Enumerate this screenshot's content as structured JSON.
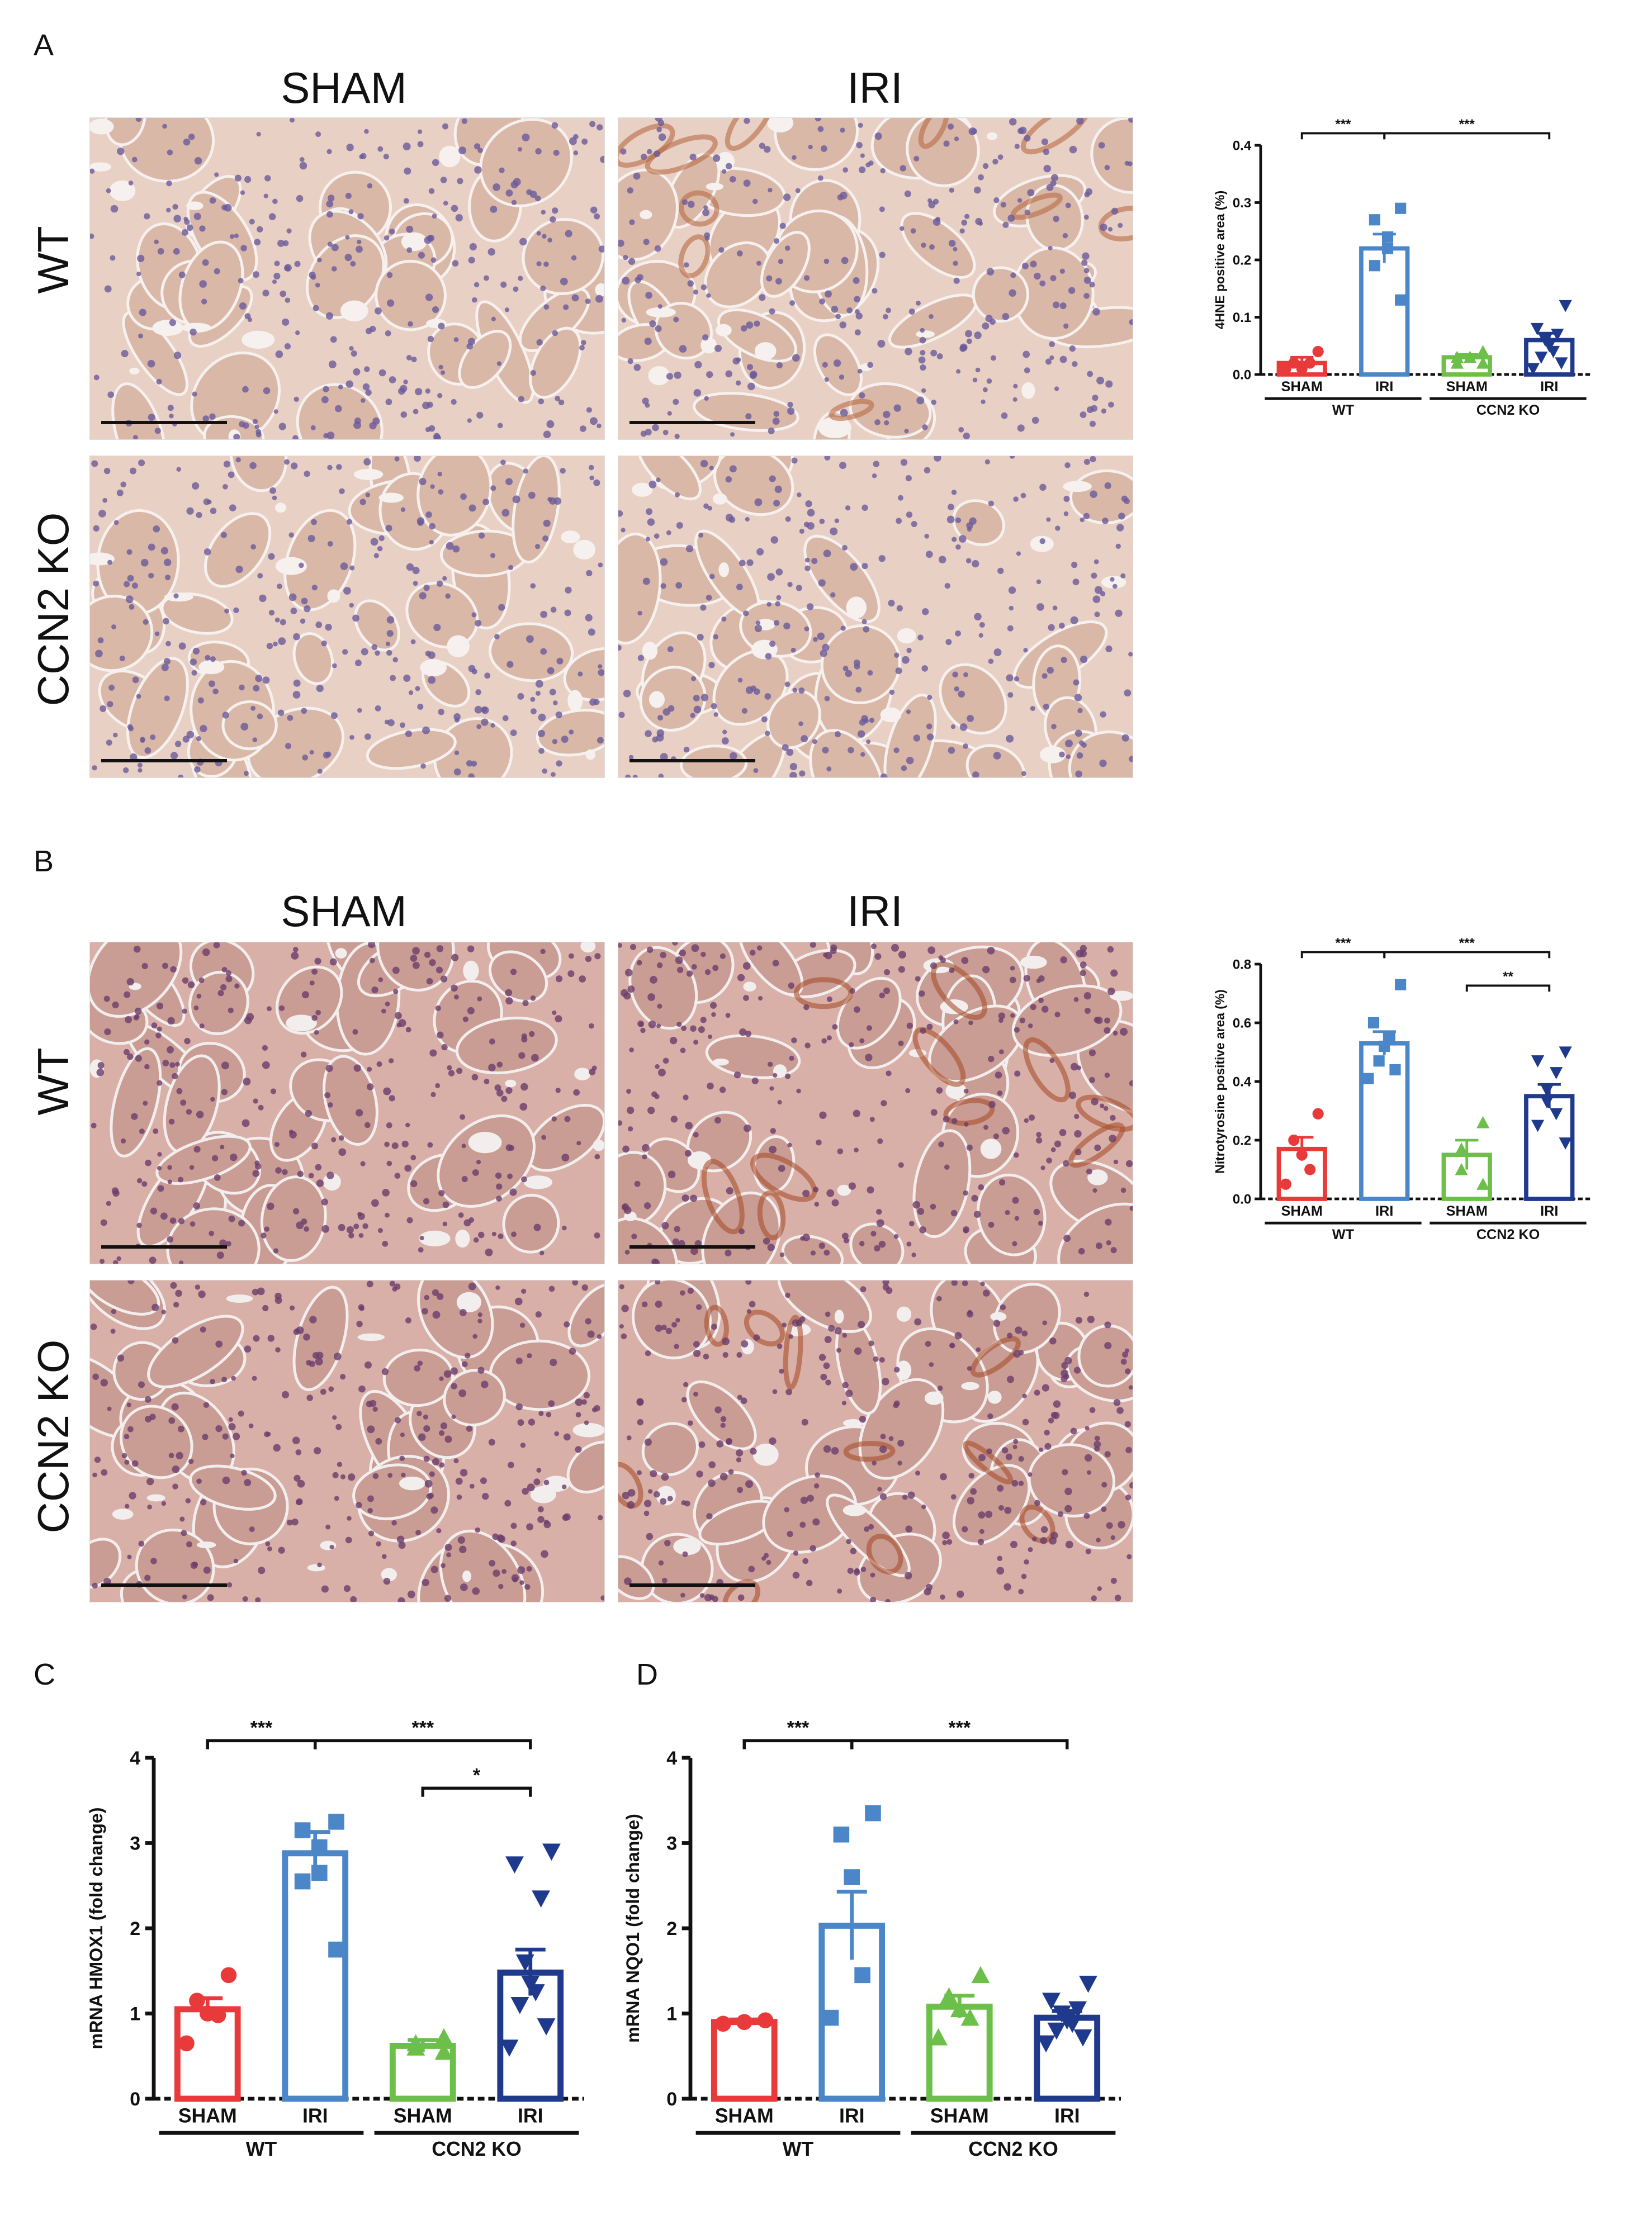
{
  "panels": {
    "A": {
      "letter": "A",
      "col_headers": [
        "SHAM",
        "IRI"
      ],
      "row_headers": [
        "WT",
        "CCN2 KO"
      ],
      "stain_colors": {
        "bg": "#e8d0c4",
        "cell": "#d9b8a8",
        "nuc": "#6a5a9a",
        "lumen": "#f6f0ee",
        "brown": "#b86b45"
      }
    },
    "B": {
      "letter": "B",
      "col_headers": [
        "SHAM",
        "IRI"
      ],
      "row_headers": [
        "WT",
        "CCN2 KO"
      ],
      "stain_colors": {
        "bg": "#d8b0a8",
        "cell": "#c99c94",
        "nuc": "#6b3d6a",
        "lumen": "#f3eeee",
        "brown": "#a8502c"
      }
    },
    "C": {
      "letter": "C"
    },
    "D": {
      "letter": "D"
    }
  },
  "chart_data": [
    {
      "id": "A",
      "type": "bar",
      "ylabel": "4HNE positive area (%)",
      "ylim": [
        0,
        0.4
      ],
      "yticks": [
        "0.0",
        "0.1",
        "0.2",
        "0.3",
        "0.4"
      ],
      "categories": [
        "SHAM",
        "IRI",
        "SHAM",
        "IRI"
      ],
      "groups": [
        {
          "label": "WT",
          "span": [
            0,
            1
          ]
        },
        {
          "label": "CCN2 KO",
          "span": [
            2,
            3
          ]
        }
      ],
      "values": [
        0.02,
        0.22,
        0.03,
        0.06
      ],
      "sem": [
        0.01,
        0.025,
        0.005,
        0.012
      ],
      "colors": [
        "#e83a3a",
        "#4a86c8",
        "#6cc04a",
        "#1f3a8c"
      ],
      "markers": [
        "circle",
        "square",
        "triangle",
        "triangle-down"
      ],
      "points": [
        [
          0.04,
          0.02,
          0.01,
          0.02,
          0.01
        ],
        [
          0.29,
          0.27,
          0.24,
          0.22,
          0.19,
          0.13
        ],
        [
          0.04,
          0.03,
          0.03,
          0.03,
          0.02,
          0.02
        ],
        [
          0.12,
          0.08,
          0.07,
          0.06,
          0.05,
          0.04,
          0.03,
          0.02,
          0.01
        ]
      ],
      "sig": [
        {
          "from": 0,
          "to": 1,
          "label": "***",
          "level": 0
        },
        {
          "from": 1,
          "to": 3,
          "label": "***",
          "level": 0
        }
      ]
    },
    {
      "id": "B",
      "type": "bar",
      "ylabel": "Nitrotyrosine positive area (%)",
      "ylim": [
        0,
        0.8
      ],
      "yticks": [
        "0.0",
        "0.2",
        "0.4",
        "0.6",
        "0.8"
      ],
      "categories": [
        "SHAM",
        "IRI",
        "SHAM",
        "IRI"
      ],
      "groups": [
        {
          "label": "WT",
          "span": [
            0,
            1
          ]
        },
        {
          "label": "CCN2 KO",
          "span": [
            2,
            3
          ]
        }
      ],
      "values": [
        0.17,
        0.53,
        0.15,
        0.35
      ],
      "sem": [
        0.04,
        0.04,
        0.05,
        0.04
      ],
      "colors": [
        "#e83a3a",
        "#4a86c8",
        "#6cc04a",
        "#1f3a8c"
      ],
      "markers": [
        "circle",
        "square",
        "triangle",
        "triangle-down"
      ],
      "points": [
        [
          0.29,
          0.2,
          0.15,
          0.1,
          0.05
        ],
        [
          0.73,
          0.6,
          0.55,
          0.52,
          0.47,
          0.44,
          0.41
        ],
        [
          0.26,
          0.17,
          0.1,
          0.05
        ],
        [
          0.5,
          0.47,
          0.43,
          0.37,
          0.33,
          0.29,
          0.25,
          0.19
        ]
      ],
      "sig": [
        {
          "from": 0,
          "to": 1,
          "label": "***",
          "level": 0
        },
        {
          "from": 1,
          "to": 3,
          "label": "***",
          "level": 0
        },
        {
          "from": 2,
          "to": 3,
          "label": "**",
          "level": 1
        }
      ]
    },
    {
      "id": "C",
      "type": "bar",
      "ylabel": "mRNA HMOX1 (fold change)",
      "ylim": [
        0,
        4
      ],
      "yticks": [
        "0",
        "1",
        "2",
        "3",
        "4"
      ],
      "categories": [
        "SHAM",
        "IRI",
        "SHAM",
        "IRI"
      ],
      "groups": [
        {
          "label": "WT",
          "span": [
            0,
            1
          ]
        },
        {
          "label": "CCN2 KO",
          "span": [
            2,
            3
          ]
        }
      ],
      "values": [
        1.05,
        2.88,
        0.62,
        1.48
      ],
      "sem": [
        0.13,
        0.25,
        0.07,
        0.27
      ],
      "colors": [
        "#e83a3a",
        "#4a86c8",
        "#6cc04a",
        "#1f3a8c"
      ],
      "markers": [
        "circle",
        "square",
        "triangle",
        "triangle-down"
      ],
      "points": [
        [
          1.45,
          1.15,
          1.0,
          0.98,
          0.65
        ],
        [
          3.25,
          3.15,
          2.95,
          2.65,
          2.55,
          1.75
        ],
        [
          0.72,
          0.65,
          0.6,
          0.55
        ],
        [
          2.9,
          2.75,
          2.35,
          1.6,
          1.35,
          1.25,
          1.1,
          0.85,
          0.6
        ]
      ],
      "sig": [
        {
          "from": 0,
          "to": 1,
          "label": "***",
          "level": 0
        },
        {
          "from": 1,
          "to": 3,
          "label": "***",
          "level": 0
        },
        {
          "from": 2,
          "to": 3,
          "label": "*",
          "level": 1
        }
      ]
    },
    {
      "id": "D",
      "type": "bar",
      "ylabel": "mRNA NQO1 (fold change)",
      "ylim": [
        0,
        4
      ],
      "yticks": [
        "0",
        "1",
        "2",
        "3",
        "4"
      ],
      "categories": [
        "SHAM",
        "IRI",
        "SHAM",
        "IRI"
      ],
      "groups": [
        {
          "label": "WT",
          "span": [
            0,
            1
          ]
        },
        {
          "label": "CCN2 KO",
          "span": [
            2,
            3
          ]
        }
      ],
      "values": [
        0.9,
        2.03,
        1.08,
        0.95
      ],
      "sem": [
        0.03,
        0.4,
        0.13,
        0.08
      ],
      "colors": [
        "#e83a3a",
        "#4a86c8",
        "#6cc04a",
        "#1f3a8c"
      ],
      "markers": [
        "circle",
        "square",
        "triangle",
        "triangle-down"
      ],
      "points": [
        [
          0.92,
          0.9,
          0.88
        ],
        [
          3.35,
          3.1,
          2.6,
          1.45,
          0.95
        ],
        [
          1.45,
          1.2,
          1.05,
          0.95,
          0.72
        ],
        [
          1.35,
          1.15,
          1.05,
          1.0,
          0.92,
          0.88,
          0.8,
          0.72,
          0.65
        ]
      ],
      "sig": [
        {
          "from": 0,
          "to": 1,
          "label": "***",
          "level": 0
        },
        {
          "from": 1,
          "to": 3,
          "label": "***",
          "level": 0
        }
      ]
    }
  ]
}
